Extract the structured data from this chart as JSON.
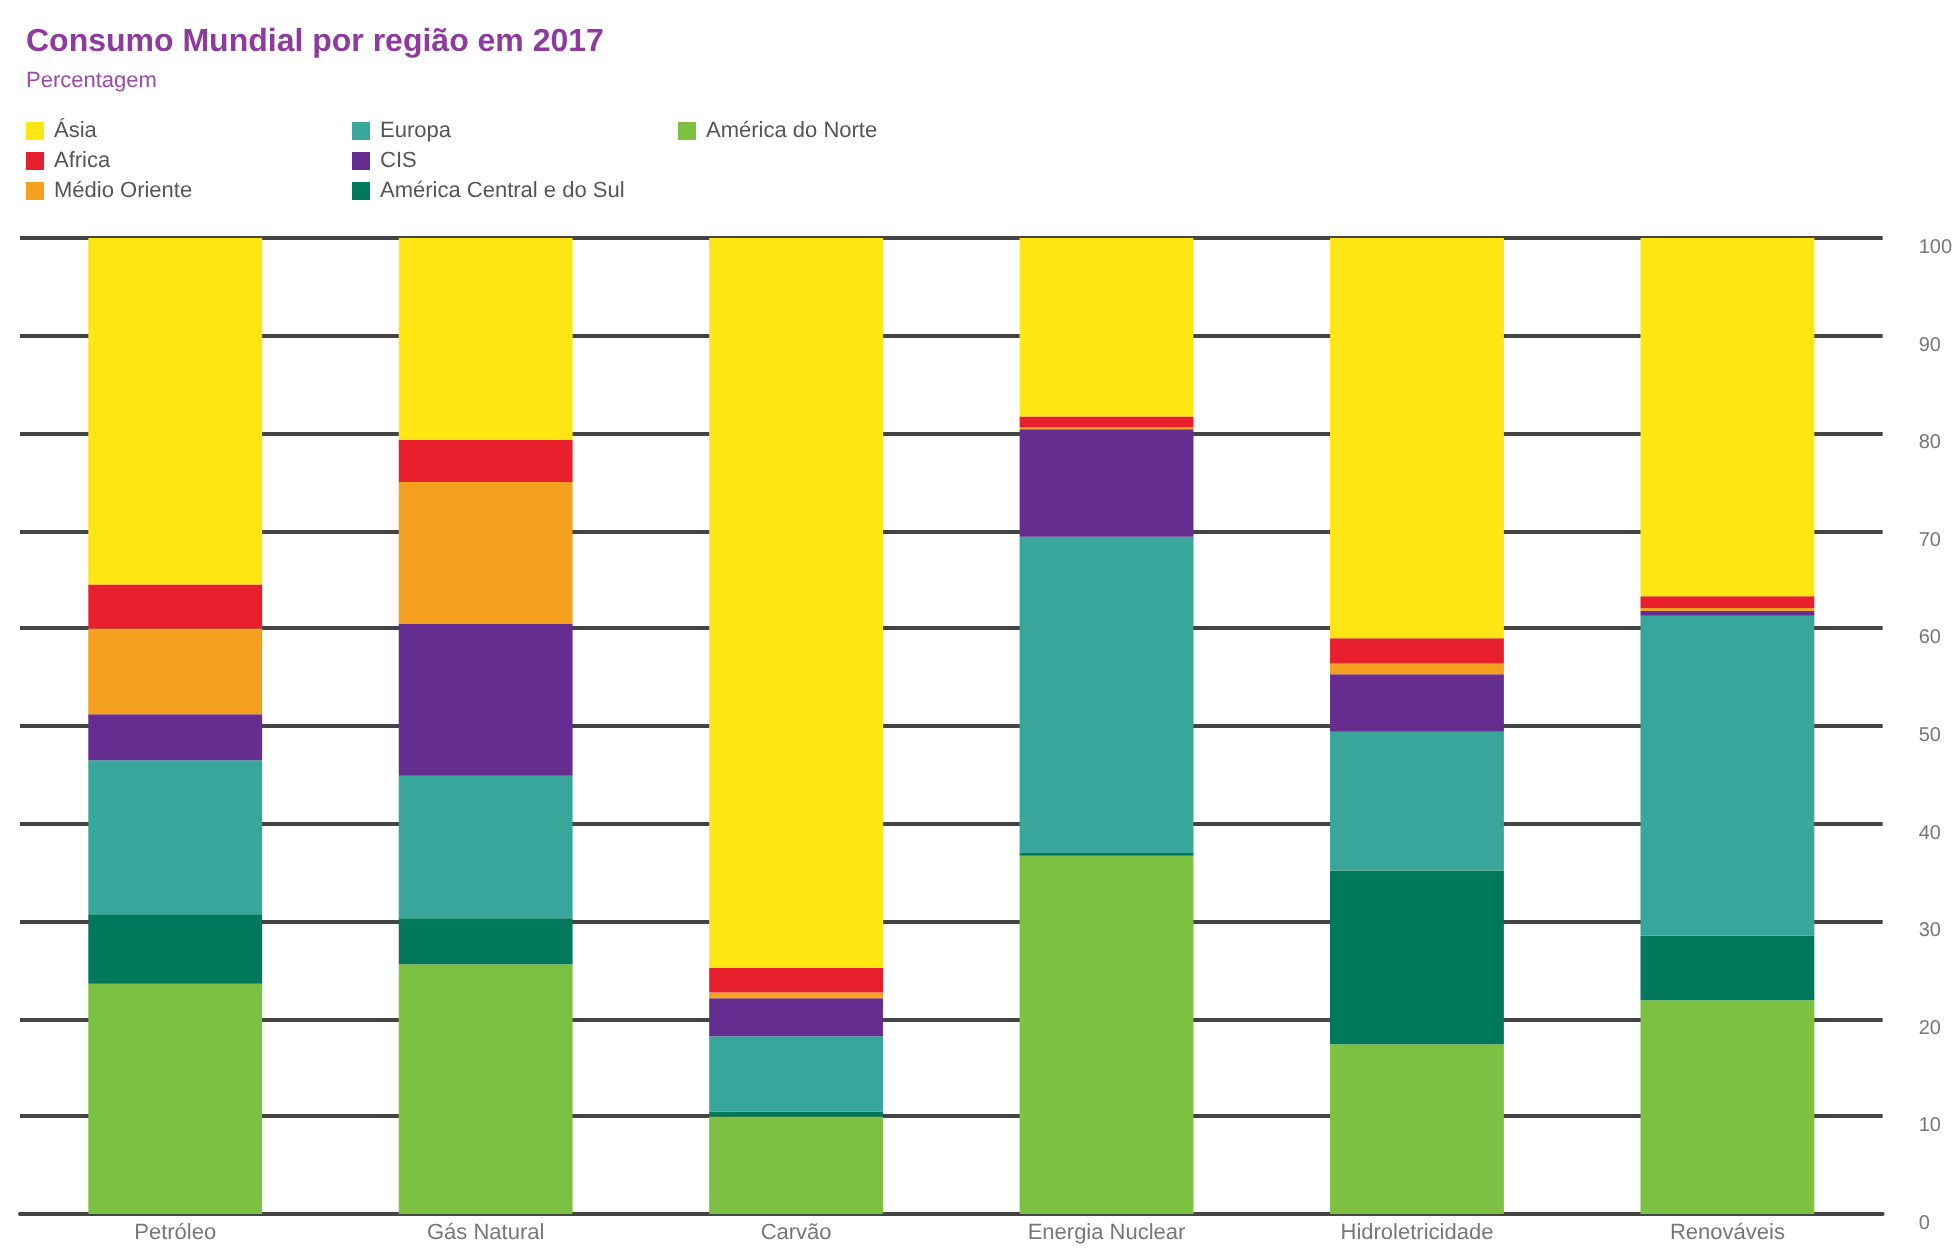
{
  "chart_data": {
    "type": "bar",
    "title": "Consumo Mundial por região em 2017",
    "subtitle": "Percentagem",
    "stacked": true,
    "categories": [
      "Petróleo",
      "Gás Natural",
      "Carvão",
      "Energia Nuclear",
      "Hidroletricidade",
      "Renováveis"
    ],
    "series": [
      {
        "name": "América do Norte",
        "color": "#7cc142",
        "values": [
          23.6,
          25.6,
          10.0,
          36.7,
          17.4,
          21.9
        ]
      },
      {
        "name": "América Central e do Sul",
        "color": "#00785c",
        "values": [
          7.1,
          4.7,
          0.5,
          0.3,
          17.8,
          6.6
        ]
      },
      {
        "name": "Europa",
        "color": "#38a69a",
        "values": [
          15.8,
          14.6,
          7.7,
          32.4,
          14.2,
          32.8
        ]
      },
      {
        "name": "CIS",
        "color": "#662d91",
        "values": [
          4.7,
          15.6,
          3.9,
          11.0,
          5.9,
          0.5
        ]
      },
      {
        "name": "Médio Oriente",
        "color": "#f5a01e",
        "values": [
          8.8,
          14.5,
          0.6,
          0.2,
          1.1,
          0.3
        ]
      },
      {
        "name": "Africa",
        "color": "#e8202e",
        "values": [
          4.5,
          4.3,
          2.5,
          1.1,
          2.6,
          1.2
        ]
      },
      {
        "name": "Ásia",
        "color": "#ffe512",
        "values": [
          35.5,
          20.7,
          74.8,
          18.4,
          41.0,
          36.7
        ]
      }
    ],
    "ylim": [
      0,
      100
    ],
    "yticks": [
      0,
      10,
      20,
      30,
      40,
      50,
      60,
      70,
      80,
      90,
      100
    ],
    "grid": "y",
    "legend": "top left"
  }
}
